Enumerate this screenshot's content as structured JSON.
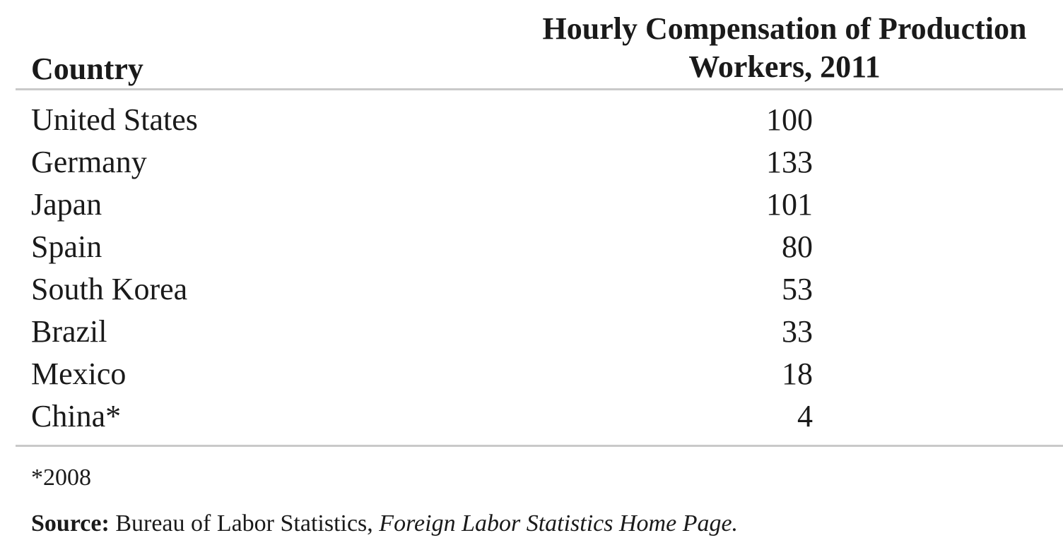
{
  "chart_data": {
    "type": "table",
    "columns": [
      "Country",
      "Hourly Compensation of Production\nWorkers, 2011"
    ],
    "rows": [
      {
        "country": "United States",
        "value": "100"
      },
      {
        "country": "Germany",
        "value": "133"
      },
      {
        "country": "Japan",
        "value": "101"
      },
      {
        "country": "Spain",
        "value": "80"
      },
      {
        "country": "South Korea",
        "value": "53"
      },
      {
        "country": "Brazil",
        "value": "33"
      },
      {
        "country": "Mexico",
        "value": "18"
      },
      {
        "country": "China*",
        "value": "4"
      }
    ],
    "footnote": "*2008",
    "source": {
      "label": "Source:",
      "text": " Bureau of Labor Statistics, ",
      "title": "Foreign Labor Statistics Home Page."
    }
  }
}
